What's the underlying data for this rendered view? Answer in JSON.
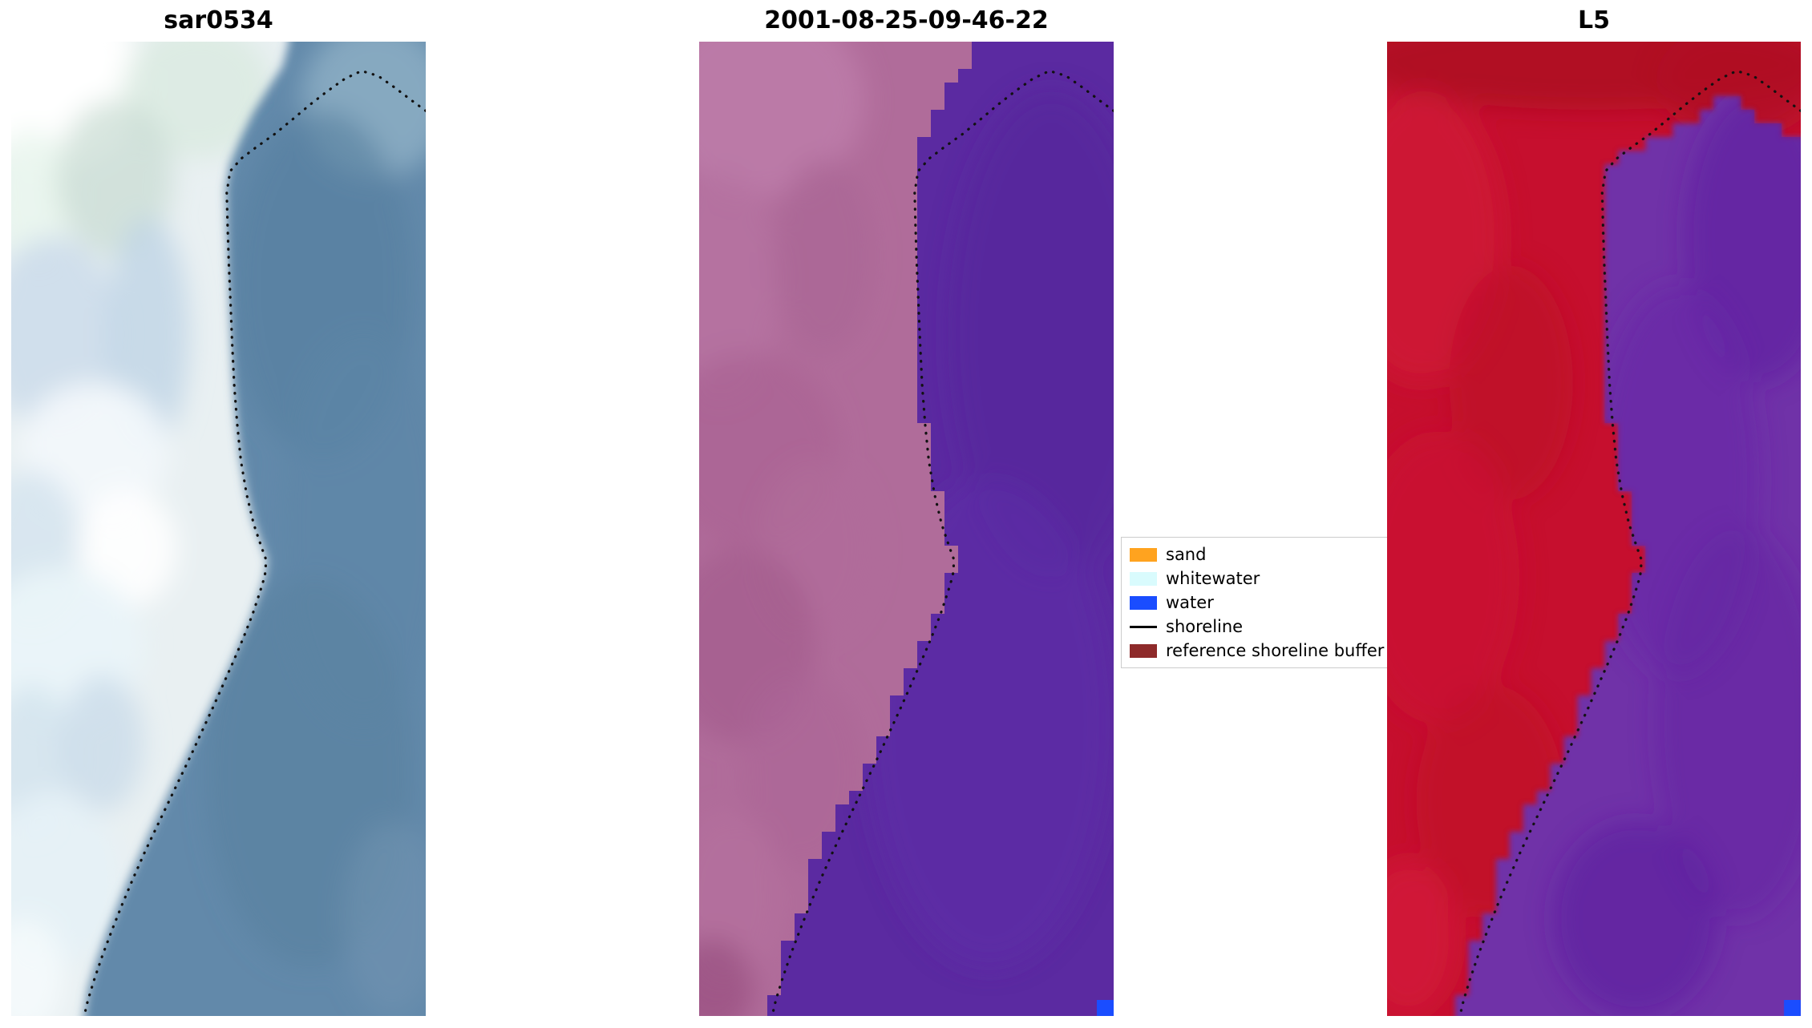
{
  "figure": {
    "background": "#ffffff"
  },
  "panels": [
    {
      "id": "sar",
      "title": "sar0534"
    },
    {
      "id": "classified",
      "title": "2001-08-25-09-46-22"
    },
    {
      "id": "l5",
      "title": "L5"
    }
  ],
  "legend": {
    "items": [
      {
        "label": "sand",
        "color": "#ffa31f",
        "type": "patch"
      },
      {
        "label": "whitewater",
        "color": "#d9fbfd",
        "type": "patch"
      },
      {
        "label": "water",
        "color": "#1a4dff",
        "type": "patch"
      },
      {
        "label": "shoreline",
        "color": "#000000",
        "type": "line"
      },
      {
        "label": "reference shoreline buffer",
        "color": "#8e2a2a",
        "type": "patch"
      }
    ]
  },
  "chart_data": {
    "type": "heatmap",
    "panels": [
      "sar0534",
      "2001-08-25-09-46-22",
      "L5"
    ],
    "legend_entries": [
      "sand",
      "whitewater",
      "water",
      "shoreline",
      "reference shoreline buffer"
    ],
    "colors": {
      "water_class": "#1a4dff",
      "shoreline": "#111111"
    },
    "shoreline": [
      [
        1.0,
        0.071
      ],
      [
        0.965,
        0.06
      ],
      [
        0.925,
        0.047
      ],
      [
        0.885,
        0.035
      ],
      [
        0.845,
        0.03
      ],
      [
        0.805,
        0.038
      ],
      [
        0.762,
        0.051
      ],
      [
        0.72,
        0.065
      ],
      [
        0.678,
        0.08
      ],
      [
        0.635,
        0.095
      ],
      [
        0.592,
        0.108
      ],
      [
        0.555,
        0.12
      ],
      [
        0.528,
        0.133
      ],
      [
        0.52,
        0.155
      ],
      [
        0.522,
        0.19
      ],
      [
        0.525,
        0.228
      ],
      [
        0.529,
        0.268
      ],
      [
        0.533,
        0.31
      ],
      [
        0.538,
        0.352
      ],
      [
        0.545,
        0.392
      ],
      [
        0.554,
        0.43
      ],
      [
        0.568,
        0.465
      ],
      [
        0.585,
        0.495
      ],
      [
        0.603,
        0.518
      ],
      [
        0.615,
        0.532
      ],
      [
        0.612,
        0.548
      ],
      [
        0.6,
        0.565
      ],
      [
        0.582,
        0.588
      ],
      [
        0.56,
        0.612
      ],
      [
        0.536,
        0.636
      ],
      [
        0.511,
        0.66
      ],
      [
        0.486,
        0.684
      ],
      [
        0.46,
        0.708
      ],
      [
        0.434,
        0.732
      ],
      [
        0.407,
        0.756
      ],
      [
        0.38,
        0.78
      ],
      [
        0.352,
        0.805
      ],
      [
        0.323,
        0.831
      ],
      [
        0.295,
        0.858
      ],
      [
        0.268,
        0.885
      ],
      [
        0.243,
        0.912
      ],
      [
        0.22,
        0.938
      ],
      [
        0.2,
        0.963
      ],
      [
        0.185,
        0.984
      ],
      [
        0.176,
        1.0
      ]
    ],
    "water_boundary": [
      [
        0.67,
        0.0
      ],
      [
        0.655,
        0.025
      ],
      [
        0.62,
        0.048
      ],
      [
        0.585,
        0.072
      ],
      [
        0.555,
        0.098
      ],
      [
        0.528,
        0.125
      ],
      [
        0.518,
        0.15
      ],
      [
        0.521,
        0.195
      ],
      [
        0.525,
        0.24
      ],
      [
        0.53,
        0.29
      ],
      [
        0.535,
        0.34
      ],
      [
        0.542,
        0.385
      ],
      [
        0.552,
        0.425
      ],
      [
        0.566,
        0.46
      ],
      [
        0.584,
        0.492
      ],
      [
        0.604,
        0.516
      ],
      [
        0.618,
        0.532
      ],
      [
        0.612,
        0.55
      ],
      [
        0.598,
        0.568
      ],
      [
        0.578,
        0.592
      ],
      [
        0.553,
        0.617
      ],
      [
        0.527,
        0.642
      ],
      [
        0.5,
        0.666
      ],
      [
        0.473,
        0.69
      ],
      [
        0.446,
        0.714
      ],
      [
        0.419,
        0.738
      ],
      [
        0.391,
        0.762
      ],
      [
        0.363,
        0.787
      ],
      [
        0.334,
        0.813
      ],
      [
        0.305,
        0.84
      ],
      [
        0.277,
        0.867
      ],
      [
        0.25,
        0.895
      ],
      [
        0.225,
        0.922
      ],
      [
        0.203,
        0.948
      ],
      [
        0.186,
        0.972
      ],
      [
        0.175,
        1.0
      ]
    ],
    "water_boundary_right": [
      [
        1.0,
        0.1
      ],
      [
        0.94,
        0.08
      ],
      [
        0.88,
        0.068
      ],
      [
        0.84,
        0.062
      ],
      [
        0.79,
        0.068
      ],
      [
        0.74,
        0.08
      ],
      [
        0.69,
        0.093
      ],
      [
        0.64,
        0.106
      ],
      [
        0.595,
        0.117
      ],
      [
        0.556,
        0.128
      ],
      [
        0.528,
        0.14
      ],
      [
        0.52,
        0.16
      ],
      [
        0.521,
        0.195
      ],
      [
        0.525,
        0.24
      ],
      [
        0.53,
        0.29
      ],
      [
        0.535,
        0.34
      ],
      [
        0.542,
        0.385
      ],
      [
        0.552,
        0.425
      ],
      [
        0.566,
        0.46
      ],
      [
        0.584,
        0.492
      ],
      [
        0.604,
        0.516
      ],
      [
        0.618,
        0.532
      ],
      [
        0.612,
        0.55
      ],
      [
        0.598,
        0.568
      ],
      [
        0.578,
        0.592
      ],
      [
        0.553,
        0.617
      ],
      [
        0.527,
        0.642
      ],
      [
        0.5,
        0.666
      ],
      [
        0.473,
        0.69
      ],
      [
        0.446,
        0.714
      ],
      [
        0.419,
        0.738
      ],
      [
        0.391,
        0.762
      ],
      [
        0.363,
        0.787
      ],
      [
        0.334,
        0.813
      ],
      [
        0.305,
        0.84
      ],
      [
        0.277,
        0.867
      ],
      [
        0.25,
        0.895
      ],
      [
        0.225,
        0.922
      ],
      [
        0.203,
        0.948
      ],
      [
        0.186,
        0.972
      ],
      [
        0.175,
        1.0
      ]
    ],
    "panel_styles": [
      {
        "land": "#e9f0f2",
        "water": "#6289aa",
        "boundary": "top",
        "grid": 0,
        "edge_blur": 6,
        "blue_pixel": false
      },
      {
        "land": "#b06c9a",
        "water": "#5b2aa1",
        "boundary": "top",
        "grid": 17,
        "edge_blur": 0,
        "blue_pixel": true
      },
      {
        "land": "#c60f2e",
        "water": "#7030a8",
        "boundary": "right",
        "grid": 17,
        "edge_blur": 3.5,
        "blue_pixel": true
      }
    ]
  }
}
